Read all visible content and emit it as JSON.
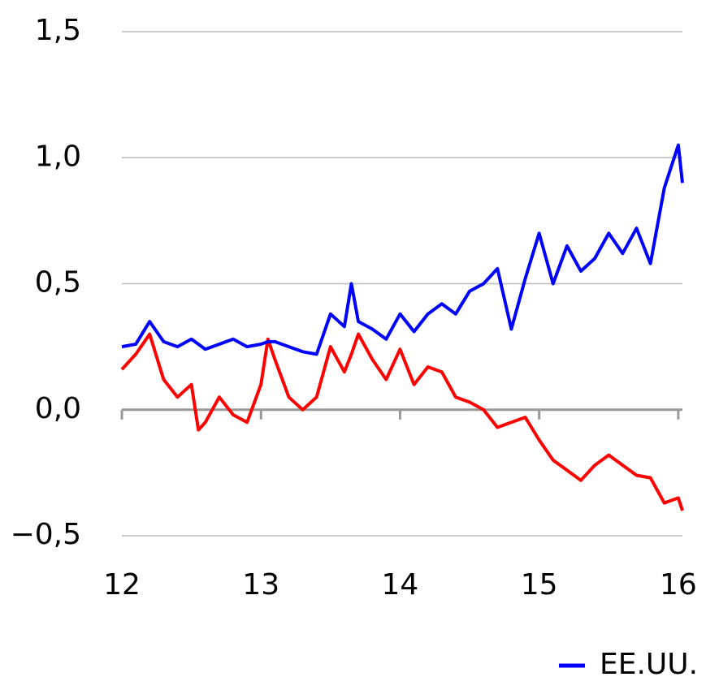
{
  "chart_data": {
    "type": "line",
    "x": [
      12.0,
      12.1,
      12.2,
      12.3,
      12.4,
      12.5,
      12.55,
      12.6,
      12.7,
      12.8,
      12.9,
      13.0,
      13.05,
      13.1,
      13.2,
      13.3,
      13.4,
      13.5,
      13.6,
      13.65,
      13.7,
      13.8,
      13.9,
      14.0,
      14.1,
      14.2,
      14.3,
      14.4,
      14.5,
      14.6,
      14.7,
      14.8,
      14.9,
      15.0,
      15.1,
      15.2,
      15.3,
      15.4,
      15.5,
      15.6,
      15.7,
      15.8,
      15.9,
      16.0,
      16.03
    ],
    "series": [
      {
        "name": "EE.UU.",
        "color": "#0000ff",
        "values": [
          0.25,
          0.26,
          0.35,
          0.27,
          0.25,
          0.28,
          0.26,
          0.24,
          0.26,
          0.28,
          0.25,
          0.26,
          0.27,
          0.27,
          0.25,
          0.23,
          0.22,
          0.38,
          0.33,
          0.5,
          0.35,
          0.32,
          0.28,
          0.38,
          0.31,
          0.38,
          0.42,
          0.38,
          0.47,
          0.5,
          0.56,
          0.32,
          0.52,
          0.7,
          0.5,
          0.65,
          0.55,
          0.6,
          0.7,
          0.62,
          0.72,
          0.58,
          0.88,
          1.05,
          0.9
        ]
      },
      {
        "color": "#ff0000",
        "values": [
          0.16,
          0.22,
          0.3,
          0.12,
          0.05,
          0.1,
          -0.08,
          -0.05,
          0.05,
          -0.02,
          -0.05,
          0.1,
          0.28,
          0.2,
          0.05,
          0,
          0.05,
          0.25,
          0.15,
          0.22,
          0.3,
          0.2,
          0.12,
          0.24,
          0.1,
          0.17,
          0.15,
          0.05,
          0.03,
          0,
          -0.07,
          -0.05,
          -0.03,
          -0.12,
          -0.2,
          -0.24,
          -0.28,
          -0.22,
          -0.18,
          -0.22,
          -0.26,
          -0.27,
          -0.37,
          -0.35,
          -0.4
        ]
      }
    ],
    "xlim": [
      12,
      16.03
    ],
    "xticks": [
      12,
      13,
      14,
      15,
      16
    ],
    "ylim": [
      -0.5,
      1.5
    ],
    "yticks": [
      {
        "value": 1.5,
        "label": "1,5"
      },
      {
        "value": 1.0,
        "label": "1,0"
      },
      {
        "value": 0.5,
        "label": "0,5"
      },
      {
        "value": 0.0,
        "label": "0,0"
      },
      {
        "value": -0.5,
        "label": "−0,5"
      }
    ],
    "grid": true,
    "legend": "bottom-right"
  }
}
